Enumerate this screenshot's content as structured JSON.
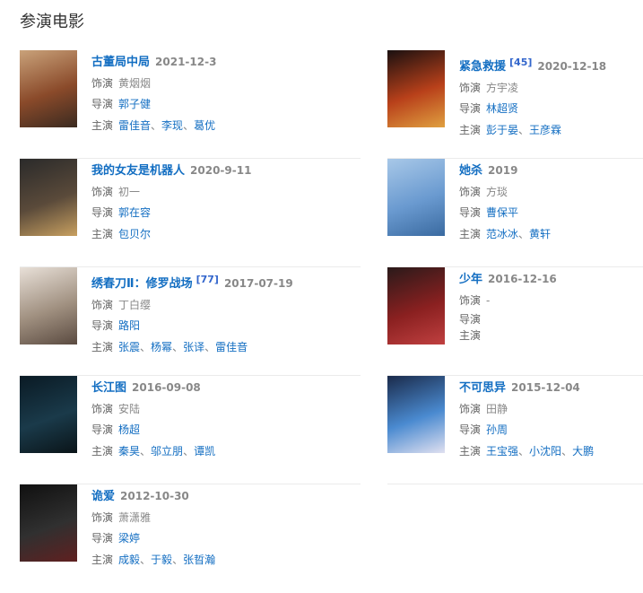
{
  "heading": "参演电影",
  "labels": {
    "role": "饰演",
    "director": "导演",
    "cast": "主演"
  },
  "films": [
    {
      "title": "古董局中局",
      "date": "2021-12-3",
      "ref": "",
      "role": "黄烟烟",
      "director": "郭子健",
      "cast": [
        "雷佳音",
        "李现",
        "葛优"
      ],
      "poster_colors": [
        "#c9a27a",
        "#8a4a2a",
        "#3a2a20"
      ]
    },
    {
      "title": "紧急救援",
      "date": "2020-12-18",
      "ref": "[45]",
      "role": "方宇凌",
      "director": "林超贤",
      "cast": [
        "彭于晏",
        "王彦霖"
      ],
      "poster_colors": [
        "#1a1010",
        "#b8401a",
        "#e0a040"
      ]
    },
    {
      "title": "我的女友是机器人",
      "date": "2020-9-11",
      "ref": "",
      "role": "初一",
      "director": "郭在容",
      "cast": [
        "包贝尔"
      ],
      "poster_colors": [
        "#2a2a2a",
        "#5a4a3a",
        "#c8a060"
      ]
    },
    {
      "title": "她杀",
      "date": "2019",
      "ref": "",
      "role": "方琰",
      "director": "曹保平",
      "cast": [
        "范冰冰",
        "黄轩"
      ],
      "poster_colors": [
        "#a8c8e8",
        "#6a9ad0",
        "#3a6aa0"
      ]
    },
    {
      "title": "绣春刀Ⅱ：修罗战场",
      "date": "2017-07-19",
      "ref": "[77]",
      "role": "丁白缨",
      "director": "路阳",
      "cast": [
        "张震",
        "杨幂",
        "张译",
        "雷佳音"
      ],
      "poster_colors": [
        "#e8e0d8",
        "#a09080",
        "#5a4a40"
      ]
    },
    {
      "title": "少年",
      "date": "2016-12-16",
      "ref": "",
      "role": "-",
      "director": "",
      "cast": [],
      "poster_colors": [
        "#2a1a1a",
        "#8a2020",
        "#c04040"
      ]
    },
    {
      "title": "长江图",
      "date": "2016-09-08",
      "ref": "",
      "role": "安陆",
      "director": "杨超",
      "cast": [
        "秦昊",
        "邬立朋",
        "谭凯"
      ],
      "poster_colors": [
        "#0a1a24",
        "#1a3a4a",
        "#0a1418"
      ]
    },
    {
      "title": "不可思异",
      "date": "2015-12-04",
      "ref": "",
      "role": "田静",
      "director": "孙周",
      "cast": [
        "王宝强",
        "小沈阳",
        "大鹏"
      ],
      "poster_colors": [
        "#1a2a4a",
        "#4a8ad0",
        "#e0e0f0"
      ]
    },
    {
      "title": "诡爱",
      "date": "2012-10-30",
      "ref": "",
      "role": "萧潇雅",
      "director": "梁婷",
      "cast": [
        "成毅",
        "于毅",
        "张晢瀚"
      ],
      "poster_colors": [
        "#101010",
        "#303030",
        "#602020"
      ]
    }
  ]
}
